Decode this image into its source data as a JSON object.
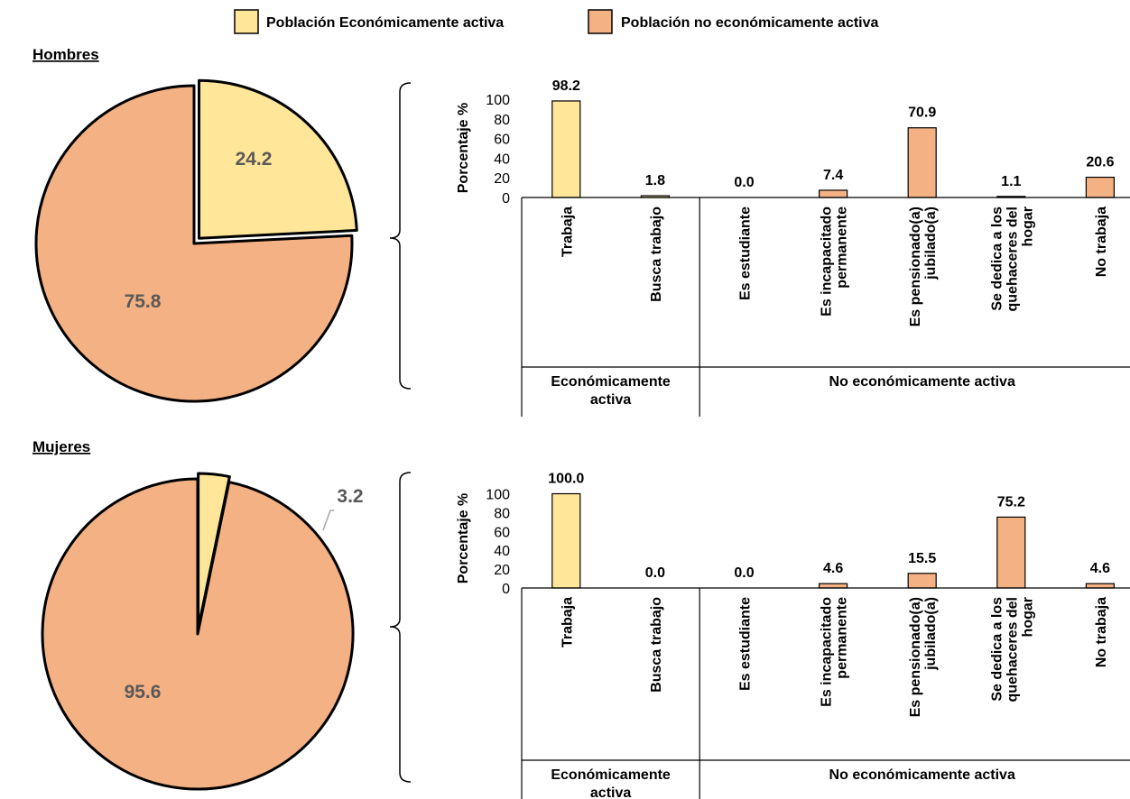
{
  "colors": {
    "active": "#FFE699",
    "inactive": "#F4B183",
    "outline": "#000000",
    "pie_label": "#595959",
    "leader": "#A6A6A6"
  },
  "legend": {
    "items": [
      {
        "label": "Población Económicamente activa",
        "color": "#FFE699"
      },
      {
        "label": "Población no económicamente activa",
        "color": "#F4B183"
      }
    ]
  },
  "chart_data": [
    {
      "panel": "Hombres",
      "type": "pie",
      "slices": [
        {
          "legend": "Población Económicamente activa",
          "value": 24.2,
          "label": "24.2",
          "exploded": true
        },
        {
          "legend": "Población no económicamente activa",
          "value": 75.8,
          "label": "75.8",
          "exploded": false
        }
      ]
    },
    {
      "panel": "Hombres",
      "type": "bar",
      "ylabel": "Porcentaje %",
      "ylim": [
        0,
        100
      ],
      "yticks": [
        0,
        20,
        40,
        60,
        80,
        100
      ],
      "categories": [
        "Trabaja",
        "Busca trabajo",
        "Es estudiante",
        "Es incapacitado permanente",
        "Es pensionado(a) jubilado(a)",
        "Se dedica a los quehaceres del hogar",
        "No trabaja"
      ],
      "values": [
        98.2,
        1.8,
        0.0,
        7.4,
        70.9,
        1.1,
        20.6
      ],
      "labels": [
        "98.2",
        "1.8",
        "0.0",
        "7.4",
        "70.9",
        "1.1",
        "20.6"
      ],
      "groups": [
        {
          "label": "Económicamente activa",
          "categories": [
            "Trabaja",
            "Busca trabajo"
          ]
        },
        {
          "label": "No económicamente activa",
          "categories": [
            "Es estudiante",
            "Es incapacitado permanente",
            "Es pensionado(a) jubilado(a)",
            "Se dedica a los quehaceres del hogar",
            "No trabaja"
          ]
        }
      ]
    },
    {
      "panel": "Mujeres",
      "type": "pie",
      "slices": [
        {
          "legend": "Población Económicamente activa",
          "value": 3.2,
          "label": "3.2",
          "exploded": true
        },
        {
          "legend": "Población no económicamente activa",
          "value": 95.6,
          "label": "95.6",
          "exploded": false
        }
      ]
    },
    {
      "panel": "Mujeres",
      "type": "bar",
      "ylabel": "Porcentaje %",
      "ylim": [
        0,
        100
      ],
      "yticks": [
        0,
        20,
        40,
        60,
        80,
        100
      ],
      "categories": [
        "Trabaja",
        "Busca trabajo",
        "Es estudiante",
        "Es incapacitado permanente",
        "Es pensionado(a) jubilado(a)",
        "Se dedica a los quehaceres del hogar",
        "No trabaja"
      ],
      "values": [
        100.0,
        0.0,
        0.0,
        4.6,
        15.5,
        75.2,
        4.6
      ],
      "labels": [
        "100.0",
        "0.0",
        "0.0",
        "4.6",
        "15.5",
        "75.2",
        "4.6"
      ],
      "groups": [
        {
          "label": "Económicamente activa",
          "categories": [
            "Trabaja",
            "Busca trabajo"
          ]
        },
        {
          "label": "No económicamente activa",
          "categories": [
            "Es estudiante",
            "Es incapacitado permanente",
            "Es pensionado(a) jubilado(a)",
            "Se dedica a los quehaceres del hogar",
            "No trabaja"
          ]
        }
      ]
    }
  ]
}
